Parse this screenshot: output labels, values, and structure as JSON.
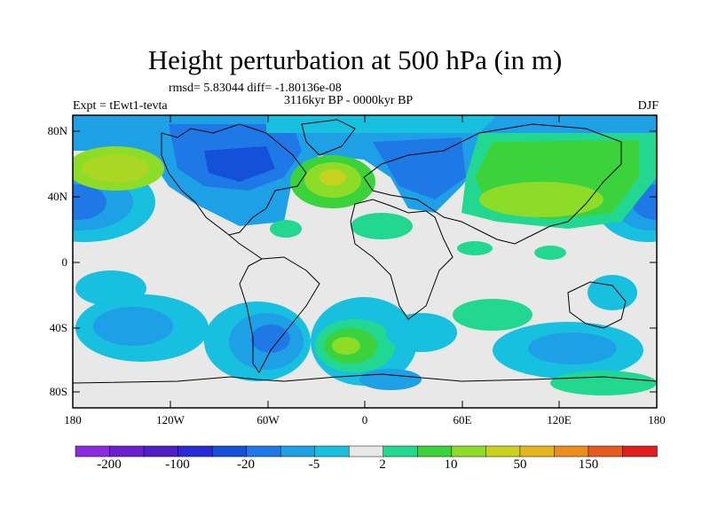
{
  "title": "Height perturbation at 500 hPa (in m)",
  "stats_text": "rmsd= 5.83044 diff= -1.80136e-08",
  "period_text": "3116kyr BP - 0000kyr BP",
  "experiment_text": "Expt = tEwt1-tevta",
  "season": "DJF",
  "y_tick_labels": [
    "80N",
    "40N",
    "0",
    "40S",
    "80S"
  ],
  "x_tick_labels": [
    "180",
    "120W",
    "60W",
    "0",
    "60E",
    "120E",
    "180"
  ],
  "colorbar": {
    "colors": [
      "#8a2be2",
      "#6a1fd0",
      "#4d1ec8",
      "#2a2ad8",
      "#1450d8",
      "#1e78e6",
      "#1ea0e6",
      "#18c0e0",
      "#e8e8e8",
      "#22d890",
      "#3cd23c",
      "#8cdc28",
      "#c8d21e",
      "#e6b41e",
      "#eb8c1e",
      "#e65a1e",
      "#e01e1e"
    ],
    "labels": [
      "-200",
      "-100",
      "-20",
      "-5",
      "2",
      "10",
      "50",
      "150"
    ]
  }
}
